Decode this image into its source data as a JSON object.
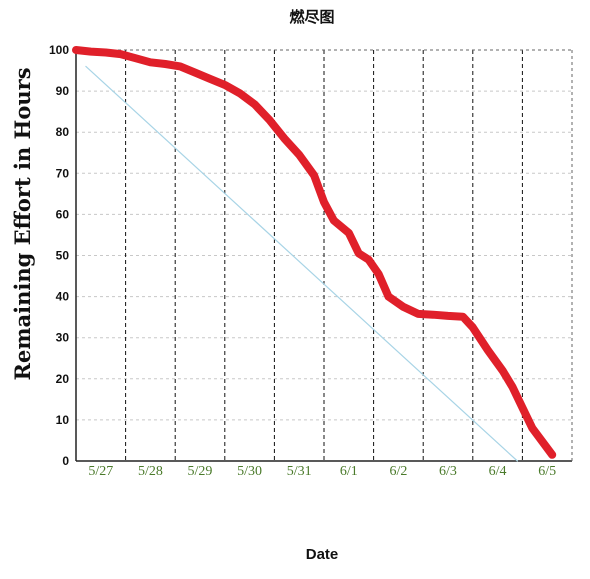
{
  "chart_data": {
    "type": "line",
    "title": "燃尽图",
    "xlabel": "Date",
    "ylabel": "Remaining Effort in Hours",
    "categories": [
      "5/27",
      "5/28",
      "5/29",
      "5/30",
      "5/31",
      "6/1",
      "6/2",
      "6/3",
      "6/4",
      "6/5"
    ],
    "ylim": [
      0,
      100
    ],
    "yticks": [
      0,
      10,
      20,
      30,
      40,
      50,
      60,
      70,
      80,
      90,
      100
    ],
    "grid": true,
    "series": [
      {
        "role": "actual",
        "color": "#e0202a",
        "x": [
          0,
          0.3,
          0.6,
          0.9,
          1.2,
          1.5,
          1.8,
          2.1,
          2.4,
          2.7,
          3.0,
          3.3,
          3.6,
          3.9,
          4.2,
          4.5,
          4.8,
          5.0,
          5.2,
          5.5,
          5.7,
          5.9,
          6.1,
          6.3,
          6.6,
          6.9,
          7.2,
          7.5,
          7.8,
          8.0,
          8.3,
          8.6,
          8.8,
          9.0,
          9.2,
          9.6
        ],
        "y": [
          100,
          99.6,
          99.4,
          99.0,
          98.0,
          97.0,
          96.6,
          96.0,
          94.5,
          93.0,
          91.5,
          89.5,
          86.8,
          83.0,
          78.5,
          74.5,
          69.5,
          63.0,
          58.5,
          55.5,
          50.5,
          49.0,
          45.5,
          40.0,
          37.5,
          35.8,
          35.6,
          35.3,
          35.1,
          32.5,
          27.0,
          22.0,
          18.0,
          13.0,
          8.0,
          1.5
        ]
      },
      {
        "role": "ideal",
        "color": "#a8d4e6",
        "x": [
          0.2,
          8.9
        ],
        "y": [
          96,
          0
        ]
      }
    ]
  }
}
